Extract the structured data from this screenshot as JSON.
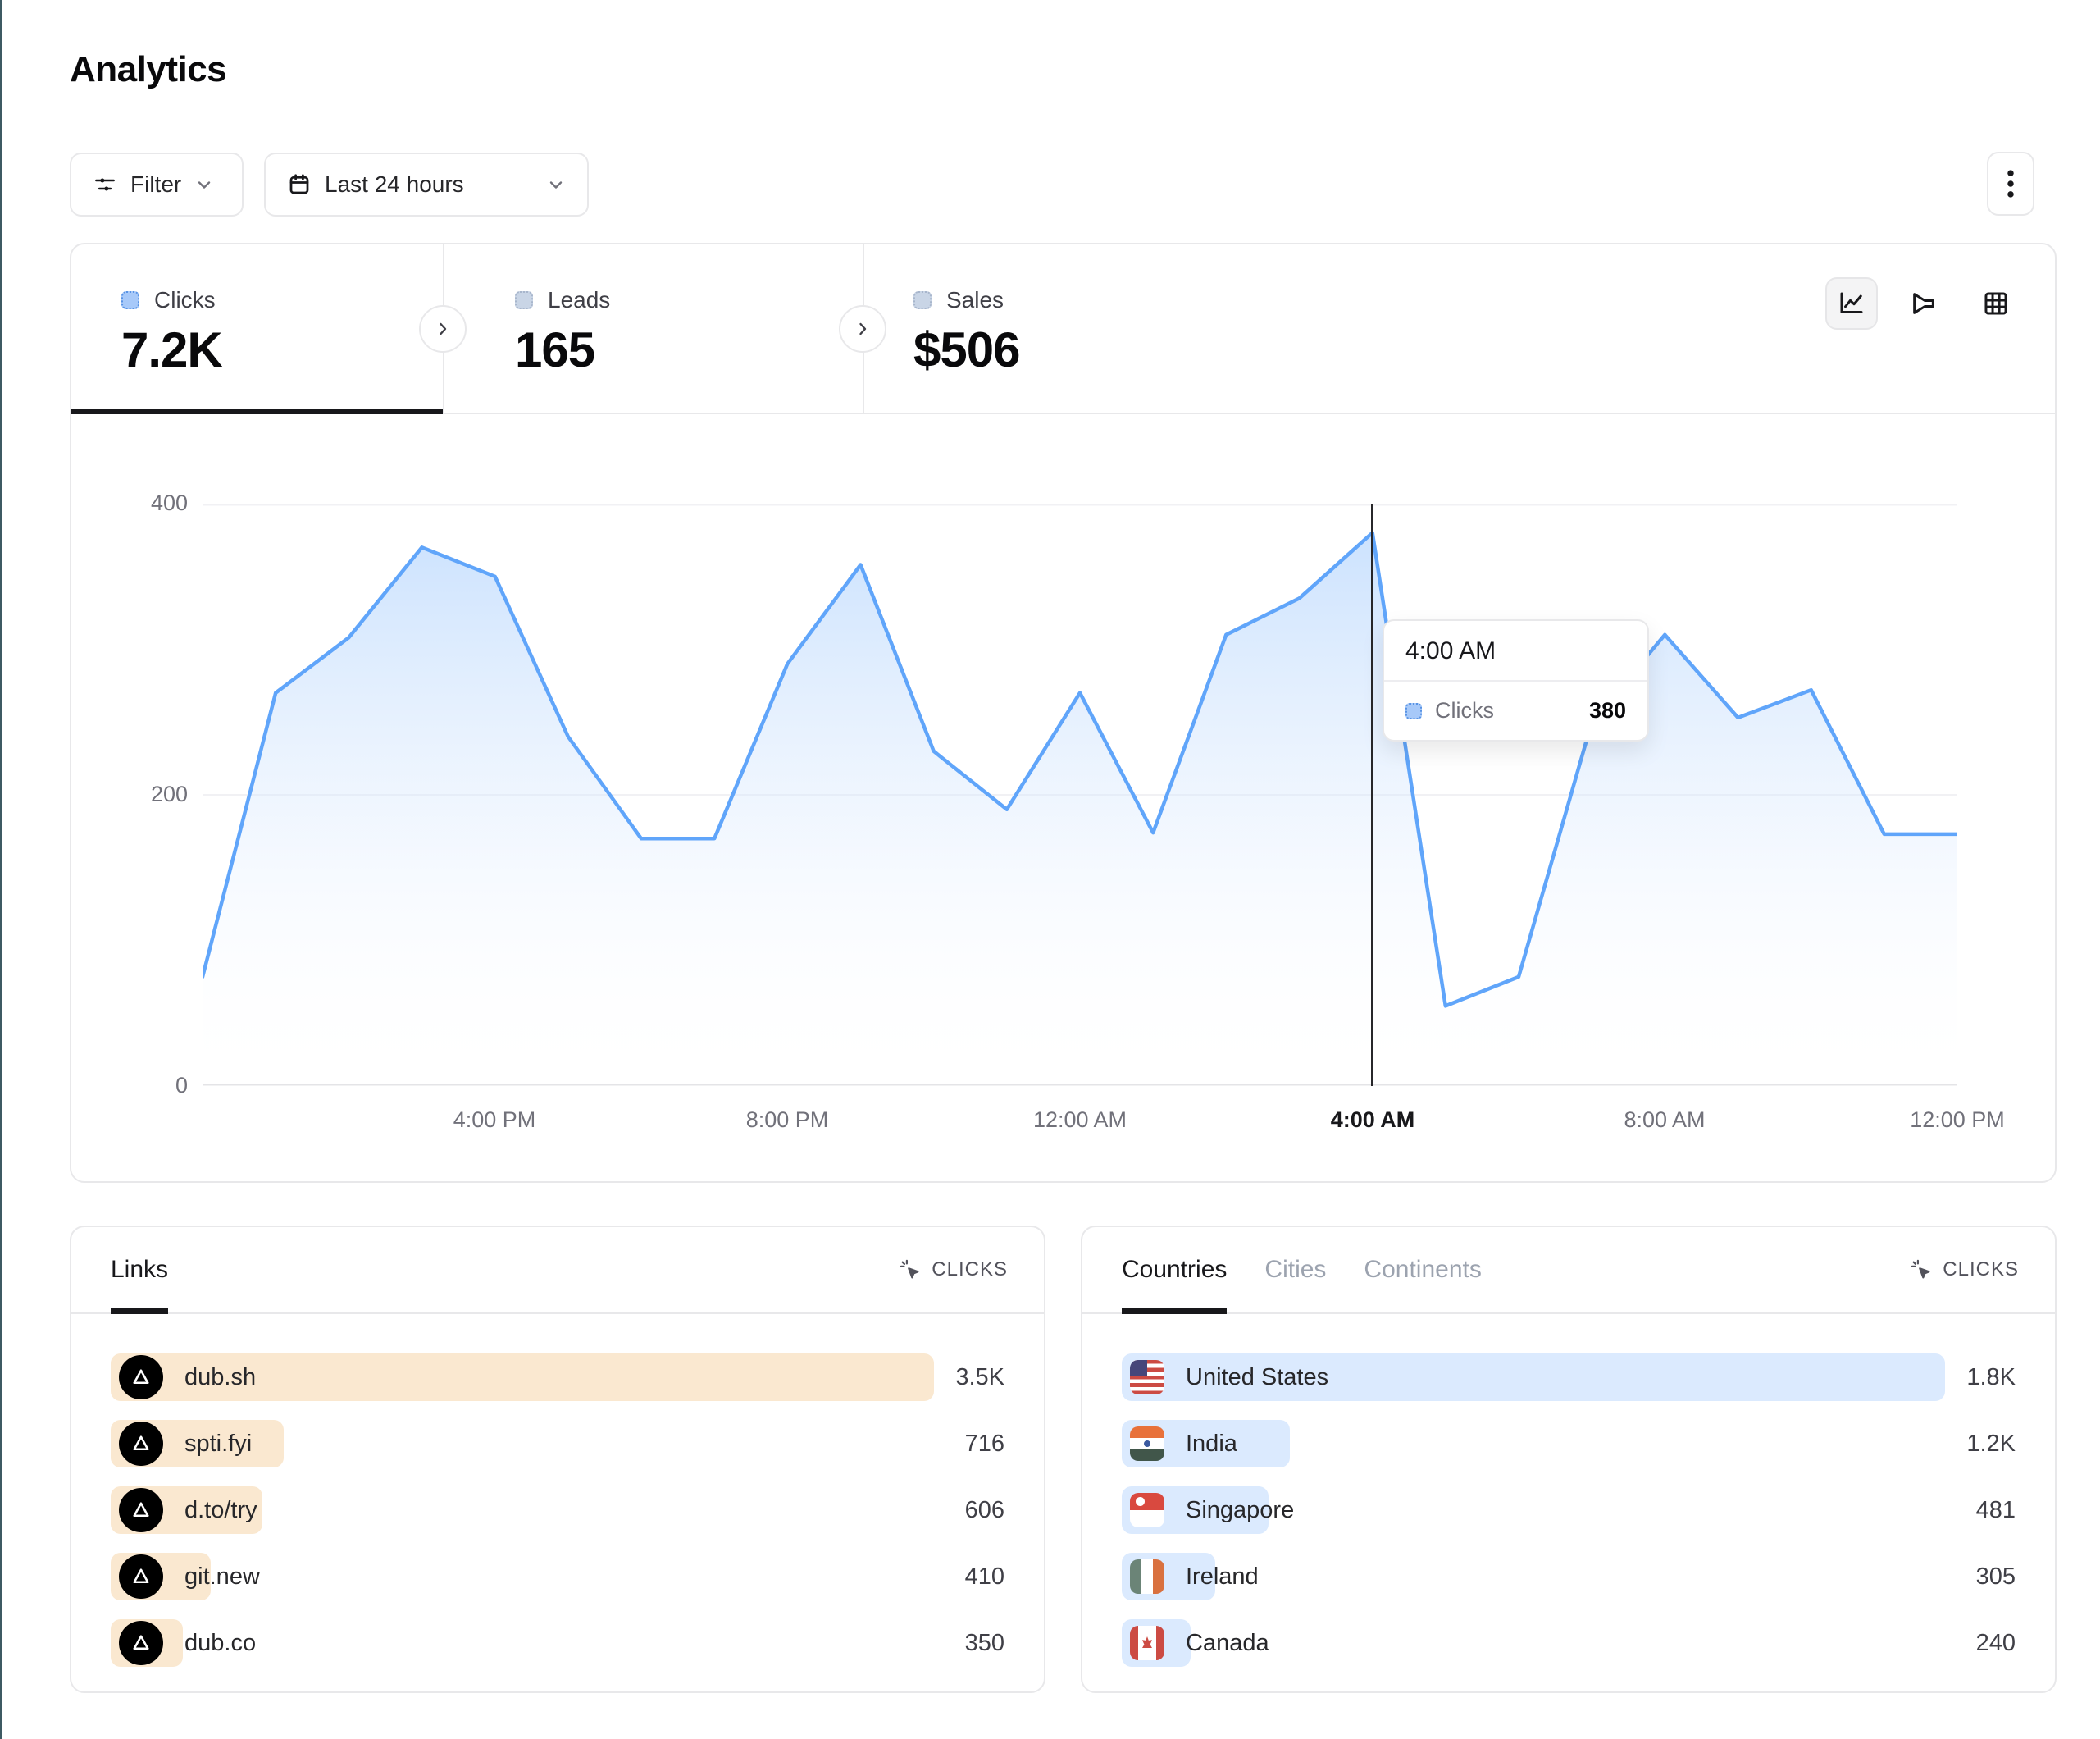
{
  "page": {
    "title": "Analytics",
    "accent_edge_color": "#3e5a63"
  },
  "toolbar": {
    "filter": {
      "label": "Filter"
    },
    "date_range": {
      "label": "Last 24 hours"
    }
  },
  "stats": {
    "tabs": [
      {
        "label": "Clicks",
        "value": "7.2K",
        "active": true
      },
      {
        "label": "Leads",
        "value": "165",
        "active": false
      },
      {
        "label": "Sales",
        "value": "$506",
        "active": false
      }
    ],
    "views": [
      "line-chart",
      "funnel",
      "table"
    ],
    "active_view": "line-chart"
  },
  "chart_data": {
    "type": "area",
    "title": "Clicks over the last 24 hours",
    "series": [
      {
        "name": "Clicks",
        "color": "#60a5fa",
        "values": [
          75,
          270,
          308,
          370,
          350,
          240,
          170,
          170,
          290,
          358,
          230,
          190,
          270,
          174,
          310,
          335,
          380,
          55,
          75,
          250,
          310,
          253,
          272,
          173,
          173
        ]
      }
    ],
    "categories": [
      "12:00 PM",
      "1:00 PM",
      "2:00 PM",
      "3:00 PM",
      "4:00 PM",
      "5:00 PM",
      "6:00 PM",
      "7:00 PM",
      "8:00 PM",
      "9:00 PM",
      "10:00 PM",
      "11:00 PM",
      "12:00 AM",
      "1:00 AM",
      "2:00 AM",
      "3:00 AM",
      "4:00 AM",
      "5:00 AM",
      "6:00 AM",
      "7:00 AM",
      "8:00 AM",
      "9:00 AM",
      "10:00 AM",
      "11:00 AM",
      "12:00 PM"
    ],
    "ylim": [
      0,
      400
    ],
    "ytick_labels_top_to_bottom": [
      "400",
      "200",
      "0"
    ],
    "x_tick_labels": [
      "4:00 PM",
      "8:00 PM",
      "12:00 AM",
      "4:00 AM",
      "8:00 AM",
      "12:00 PM"
    ],
    "highlighted_x_tick": "4:00 AM",
    "grid": "horizontal",
    "legend_position": "none",
    "crosshair_index": 16,
    "tooltip": {
      "title": "4:00 AM",
      "series": "Clicks",
      "value": "380"
    }
  },
  "links_panel": {
    "tab_label": "Links",
    "metric_header": "CLICKS",
    "bar_color": "#fae8d0",
    "rows": [
      {
        "label": "dub.sh",
        "value": "3.5K",
        "width_pct": 100
      },
      {
        "label": "spti.fyi",
        "value": "716",
        "width_pct": 21
      },
      {
        "label": "d.to/try",
        "value": "606",
        "width_pct": 18.4
      },
      {
        "label": "git.new",
        "value": "410",
        "width_pct": 12.2
      },
      {
        "label": "dub.co",
        "value": "350",
        "width_pct": 8.8
      }
    ]
  },
  "countries_panel": {
    "tabs": [
      {
        "label": "Countries",
        "active": true
      },
      {
        "label": "Cities",
        "active": false
      },
      {
        "label": "Continents",
        "active": false
      }
    ],
    "metric_header": "CLICKS",
    "bar_color": "#dbeafe",
    "rows": [
      {
        "label": "United States",
        "flag": "us",
        "value": "1.8K",
        "width_pct": 100
      },
      {
        "label": "India",
        "flag": "in",
        "value": "1.2K",
        "width_pct": 20.4
      },
      {
        "label": "Singapore",
        "flag": "sg",
        "value": "481",
        "width_pct": 17.8
      },
      {
        "label": "Ireland",
        "flag": "ie",
        "value": "305",
        "width_pct": 11.4
      },
      {
        "label": "Canada",
        "flag": "ca",
        "value": "240",
        "width_pct": 8.4
      }
    ]
  }
}
